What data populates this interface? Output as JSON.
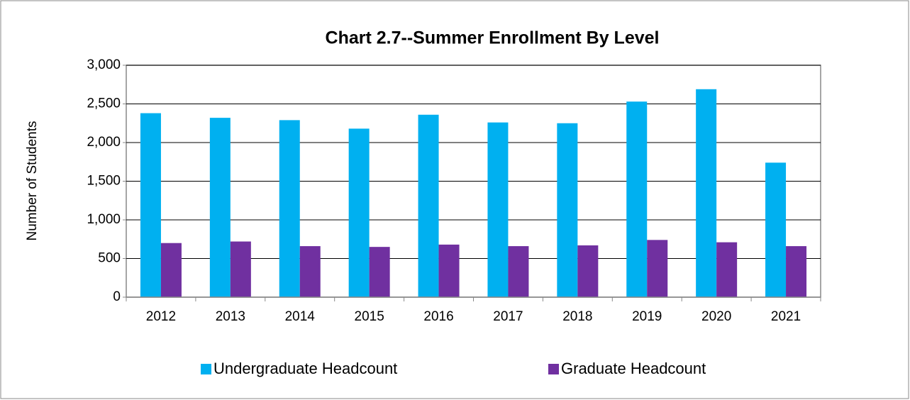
{
  "chart_data": {
    "type": "bar",
    "title": "Chart 2.7--Summer Enrollment By Level",
    "y_label": "Number of Students",
    "categories": [
      "2012",
      "2013",
      "2014",
      "2015",
      "2016",
      "2017",
      "2018",
      "2019",
      "2020",
      "2021"
    ],
    "series": [
      {
        "name": "Undergraduate Headcount",
        "color": "#00b0f0",
        "values": [
          2380,
          2320,
          2290,
          2180,
          2360,
          2260,
          2250,
          2530,
          2690,
          1740
        ]
      },
      {
        "name": "Graduate Headcount",
        "color": "#7030a0",
        "values": [
          700,
          720,
          660,
          650,
          680,
          660,
          670,
          740,
          710,
          660
        ]
      }
    ],
    "ylim": [
      0,
      3000
    ],
    "yticks": [
      0,
      500,
      {
        "value": 1000,
        "label": "1,000"
      },
      {
        "value": 1500,
        "label": "1,500"
      },
      {
        "value": 2000,
        "label": "2,000"
      },
      {
        "value": 2500,
        "label": "2,500"
      },
      {
        "value": 3000,
        "label": "3,000"
      }
    ],
    "grid": true,
    "legend": "bottom"
  }
}
